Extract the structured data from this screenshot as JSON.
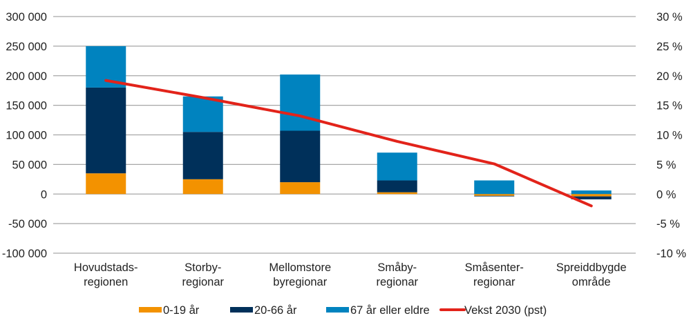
{
  "chart_data": {
    "type": "bar",
    "stacked": true,
    "title": "",
    "xlabel": "",
    "ylabel": "",
    "y2label": "",
    "categories": [
      [
        "Hovudstads-",
        "regionen"
      ],
      [
        "Storby-",
        "regionar"
      ],
      [
        "Mellomstore",
        "byregionar"
      ],
      [
        "Småby-",
        "regionar"
      ],
      [
        "Småsenter-",
        "regionar"
      ],
      [
        "Spreiddbygde",
        "område"
      ]
    ],
    "series": [
      {
        "name": "0-19 år",
        "type": "bar",
        "axis": "left",
        "color": "#f39200",
        "values": [
          35000,
          25000,
          20000,
          3000,
          -3000,
          -4000
        ]
      },
      {
        "name": "20-66 år",
        "type": "bar",
        "axis": "left",
        "color": "#00305a",
        "values": [
          145000,
          80000,
          87000,
          20000,
          -1000,
          -5000
        ]
      },
      {
        "name": "67 år eller eldre",
        "type": "bar",
        "axis": "left",
        "color": "#0083bf",
        "values": [
          70000,
          60000,
          95000,
          47000,
          23000,
          6000
        ]
      },
      {
        "name": "Vekst 2030 (pst)",
        "type": "line",
        "axis": "right",
        "color": "#e2231a",
        "values": [
          19.2,
          16.3,
          13.2,
          8.9,
          5.1,
          -2.0
        ]
      }
    ],
    "ylim": [
      -100000,
      300000
    ],
    "y_ticks": [
      300000,
      250000,
      200000,
      150000,
      100000,
      50000,
      0,
      -50000,
      -100000
    ],
    "y_tick_labels": [
      "300 000",
      "250 000",
      "200 000",
      "150 000",
      "100 000",
      "50 000",
      "0",
      "-50 000",
      "-100 000"
    ],
    "y2lim": [
      -10,
      30
    ],
    "y2_ticks": [
      30,
      25,
      20,
      15,
      10,
      5,
      0,
      -5,
      -10
    ],
    "y2_tick_labels": [
      "30 %",
      "25 %",
      "20 %",
      "15 %",
      "10 %",
      "5 %",
      "0 %",
      "-5 %",
      "-10 %"
    ],
    "grid": true,
    "legend_position": "bottom",
    "colors": {
      "grid": "#a6a6a6",
      "text": "#222222"
    }
  }
}
